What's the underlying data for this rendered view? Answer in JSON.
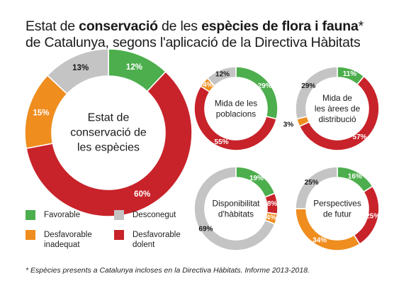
{
  "title": {
    "line1_parts": [
      {
        "text": "Estat de ",
        "bold": false
      },
      {
        "text": "conservació",
        "bold": true
      },
      {
        "text": " de les ",
        "bold": false
      },
      {
        "text": "espècies de flora i fauna",
        "bold": true
      },
      {
        "text": "*",
        "bold": false
      }
    ],
    "line2": "de Catalunya, segons l'aplicació de la Directiva Hàbitats"
  },
  "colors": {
    "favorable": "#4cae4c",
    "inadequat": "#ef8d1e",
    "dolent": "#c8232a",
    "desconegut": "#c4c4c4"
  },
  "legend": [
    {
      "key": "favorable",
      "label": "Favorable"
    },
    {
      "key": "desconegut",
      "label": "Desconegut"
    },
    {
      "key": "inadequat",
      "label": "Desfavorable\ninadequat"
    },
    {
      "key": "dolent",
      "label": "Desfavorable\ndolent"
    }
  ],
  "chart_data": [
    {
      "type": "pie",
      "title": "Estat de conservació de les espècies",
      "title_lines": [
        "Estat de",
        "conservació de",
        "les espècies"
      ],
      "slices": [
        {
          "key": "favorable",
          "value": 12,
          "label": "12%"
        },
        {
          "key": "dolent",
          "value": 60,
          "label": "60%"
        },
        {
          "key": "inadequat",
          "value": 15,
          "label": "15%"
        },
        {
          "key": "desconegut",
          "value": 13,
          "label": "13%"
        }
      ]
    },
    {
      "type": "pie",
      "title": "Mida de les poblacions",
      "title_lines": [
        "Mida de les",
        "poblacions"
      ],
      "slices": [
        {
          "key": "favorable",
          "value": 29,
          "label": "29%"
        },
        {
          "key": "dolent",
          "value": 55,
          "label": "55%"
        },
        {
          "key": "inadequat",
          "value": 4,
          "label": "4%"
        },
        {
          "key": "desconegut",
          "value": 12,
          "label": "12%"
        }
      ]
    },
    {
      "type": "pie",
      "title": "Mida de les àrees de distribució",
      "title_lines": [
        "Mida de",
        "les àrees de",
        "distribució"
      ],
      "slices": [
        {
          "key": "favorable",
          "value": 11,
          "label": "11%"
        },
        {
          "key": "dolent",
          "value": 57,
          "label": "57%"
        },
        {
          "key": "inadequat",
          "value": 3,
          "label": "3%"
        },
        {
          "key": "desconegut",
          "value": 29,
          "label": "29%"
        }
      ]
    },
    {
      "type": "pie",
      "title": "Disponibilitat d'hàbitats",
      "title_lines": [
        "Disponibilitat",
        "d'hàbitats"
      ],
      "slices": [
        {
          "key": "favorable",
          "value": 19,
          "label": "19%"
        },
        {
          "key": "dolent",
          "value": 8,
          "label": "8%"
        },
        {
          "key": "inadequat",
          "value": 4,
          "label": "4%"
        },
        {
          "key": "desconegut",
          "value": 69,
          "label": "69%"
        }
      ]
    },
    {
      "type": "pie",
      "title": "Perspectives de futur",
      "title_lines": [
        "Perspectives",
        "de futur"
      ],
      "slices": [
        {
          "key": "favorable",
          "value": 16,
          "label": "16%"
        },
        {
          "key": "dolent",
          "value": 25,
          "label": "25%"
        },
        {
          "key": "inadequat",
          "value": 34,
          "label": "34%"
        },
        {
          "key": "desconegut",
          "value": 25,
          "label": "25%"
        }
      ]
    }
  ],
  "footnote": "* Espècies presents a Catalunya incloses en la Directiva Hàbitats. Informe 2013-2018."
}
